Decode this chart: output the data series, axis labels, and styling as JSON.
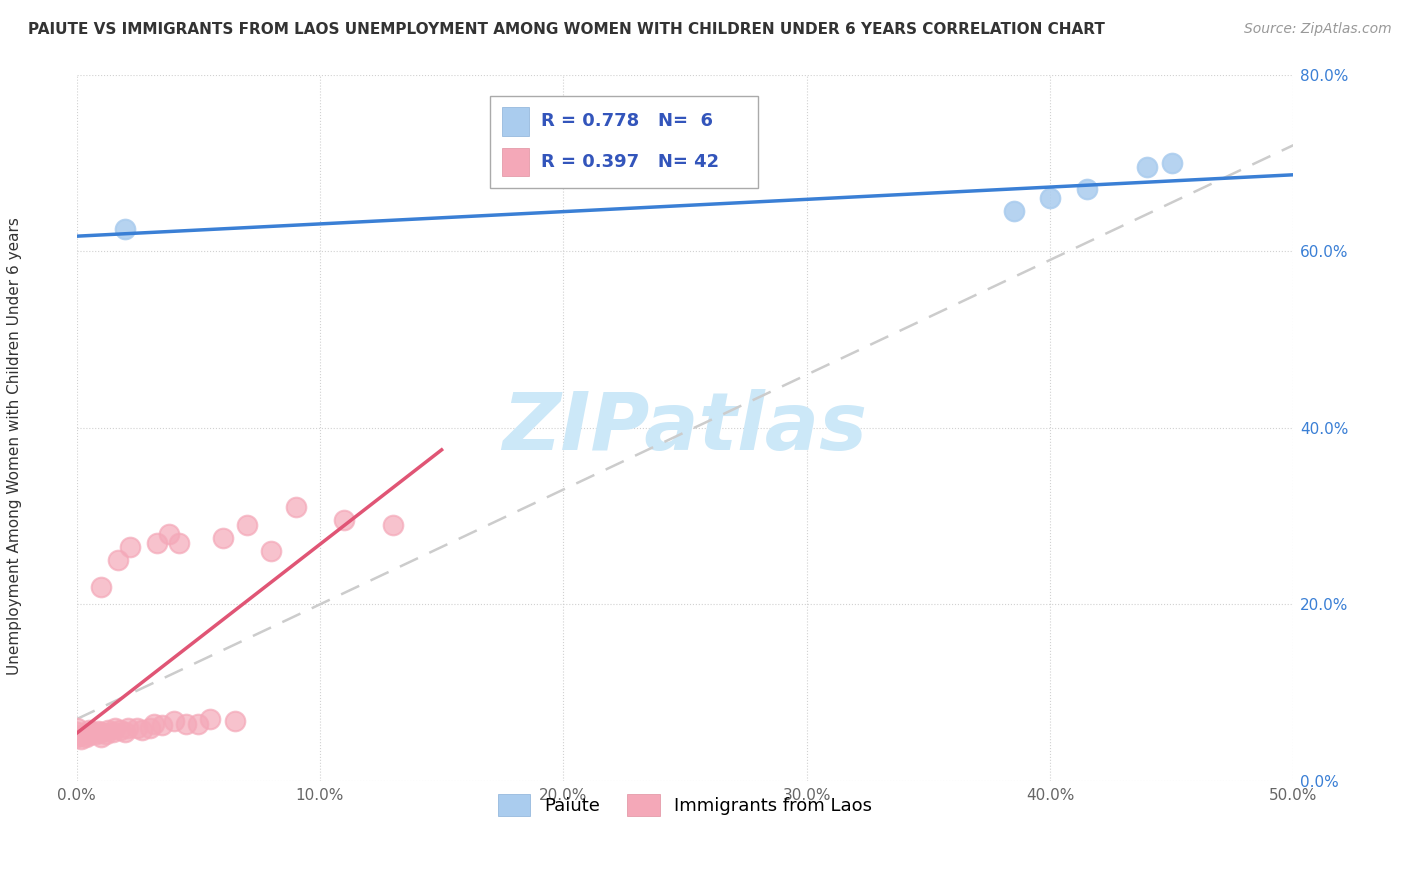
{
  "title": "PAIUTE VS IMMIGRANTS FROM LAOS UNEMPLOYMENT AMONG WOMEN WITH CHILDREN UNDER 6 YEARS CORRELATION CHART",
  "source": "Source: ZipAtlas.com",
  "ylabel": "Unemployment Among Women with Children Under 6 years",
  "xlim": [
    0.0,
    0.5
  ],
  "ylim": [
    0.0,
    0.8
  ],
  "xticks": [
    0.0,
    0.1,
    0.2,
    0.3,
    0.4,
    0.5
  ],
  "yticks": [
    0.0,
    0.2,
    0.4,
    0.6,
    0.8
  ],
  "xtick_labels": [
    "0.0%",
    "10.0%",
    "20.0%",
    "30.0%",
    "40.0%",
    "50.0%"
  ],
  "ytick_labels": [
    "0.0%",
    "20.0%",
    "40.0%",
    "60.0%",
    "80.0%"
  ],
  "paiute_R": "0.778",
  "paiute_N": "6",
  "laos_R": "0.397",
  "laos_N": "42",
  "paiute_color": "#aaccee",
  "laos_color": "#f4a8b8",
  "paiute_line_color": "#3a7fd5",
  "laos_line_color": "#e05575",
  "dashed_line_color": "#cccccc",
  "watermark_text": "ZIPatlas",
  "watermark_color": "#cce8f8",
  "background_color": "#ffffff",
  "legend_text_color": "#3355bb",
  "ytick_color": "#3a7fd5",
  "xtick_color": "#666666",
  "paiute_x": [
    0.02,
    0.385,
    0.4,
    0.415,
    0.44,
    0.45
  ],
  "paiute_y": [
    0.625,
    0.645,
    0.66,
    0.67,
    0.695,
    0.7
  ],
  "laos_x": [
    0.0,
    0.0,
    0.0,
    0.002,
    0.002,
    0.004,
    0.005,
    0.005,
    0.006,
    0.008,
    0.009,
    0.01,
    0.01,
    0.01,
    0.012,
    0.013,
    0.015,
    0.016,
    0.017,
    0.018,
    0.02,
    0.021,
    0.022,
    0.025,
    0.027,
    0.03,
    0.032,
    0.033,
    0.035,
    0.038,
    0.04,
    0.042,
    0.045,
    0.05,
    0.055,
    0.06,
    0.065,
    0.07,
    0.08,
    0.09,
    0.11,
    0.13
  ],
  "laos_y": [
    0.05,
    0.055,
    0.06,
    0.048,
    0.052,
    0.05,
    0.052,
    0.058,
    0.055,
    0.053,
    0.057,
    0.05,
    0.055,
    0.22,
    0.053,
    0.058,
    0.055,
    0.06,
    0.25,
    0.058,
    0.055,
    0.06,
    0.265,
    0.06,
    0.058,
    0.06,
    0.065,
    0.27,
    0.063,
    0.28,
    0.068,
    0.27,
    0.065,
    0.065,
    0.07,
    0.275,
    0.068,
    0.29,
    0.26,
    0.31,
    0.295,
    0.29
  ],
  "title_fontsize": 11,
  "axis_label_fontsize": 11,
  "tick_fontsize": 11,
  "legend_fontsize": 13,
  "source_fontsize": 10
}
